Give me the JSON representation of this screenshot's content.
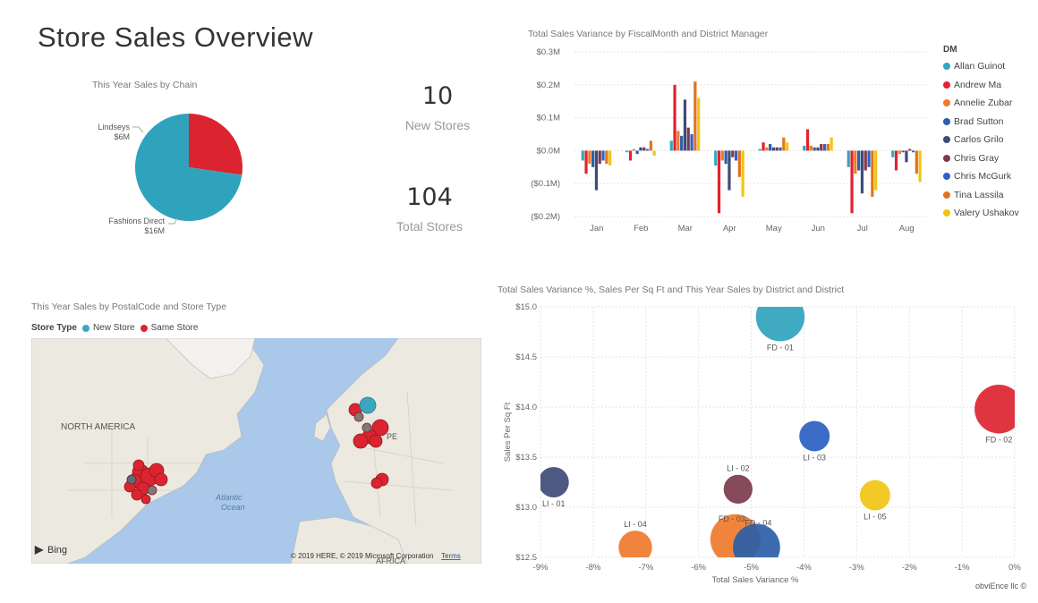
{
  "page": {
    "title": "Store Sales Overview",
    "footer": "obviEnce llc ©"
  },
  "kpis": [
    {
      "value": "10",
      "label": "New Stores"
    },
    {
      "value": "104",
      "label": "Total Stores"
    }
  ],
  "chart_data": [
    {
      "type": "pie",
      "title": "This Year Sales by Chain",
      "slices": [
        {
          "name": "Lindseys",
          "label": "$6M",
          "value": 6,
          "color": "#dc2430"
        },
        {
          "name": "Fashions Direct",
          "label": "$16M",
          "value": 16,
          "color": "#2fa3bc"
        }
      ]
    },
    {
      "type": "bar",
      "title": "Total Sales Variance by FiscalMonth and District Manager",
      "categories": [
        "Jan",
        "Feb",
        "Mar",
        "Apr",
        "May",
        "Jun",
        "Jul",
        "Aug"
      ],
      "ylim": [
        -0.2,
        0.3
      ],
      "yticks": [
        "$0.3M",
        "$0.2M",
        "$0.1M",
        "$0.0M",
        "($0.1M)",
        "($0.2M)"
      ],
      "legend_title": "DM",
      "series": [
        {
          "name": "Allan Guinot",
          "color": "#33a6be",
          "values": [
            -0.03,
            -0.005,
            0.03,
            -0.045,
            0.005,
            0.015,
            -0.05,
            -0.02
          ]
        },
        {
          "name": "Andrew Ma",
          "color": "#e3212f",
          "values": [
            -0.07,
            -0.03,
            0.2,
            -0.19,
            0.025,
            0.065,
            -0.19,
            -0.06
          ]
        },
        {
          "name": "Annelie Zubar",
          "color": "#f07a2c",
          "values": [
            -0.04,
            0.005,
            0.06,
            -0.03,
            0.01,
            0.015,
            -0.07,
            -0.01
          ]
        },
        {
          "name": "Brad Sutton",
          "color": "#2b5fa8",
          "values": [
            -0.05,
            -0.01,
            0.045,
            -0.04,
            0.02,
            0.01,
            -0.06,
            -0.005
          ]
        },
        {
          "name": "Carlos Grilo",
          "color": "#3f4b78",
          "values": [
            -0.12,
            0.01,
            0.155,
            -0.12,
            0.01,
            0.01,
            -0.13,
            -0.035
          ]
        },
        {
          "name": "Chris Gray",
          "color": "#7c3b4c",
          "values": [
            -0.04,
            0.01,
            0.07,
            -0.02,
            0.01,
            0.02,
            -0.06,
            0.005
          ]
        },
        {
          "name": "Chris McGurk",
          "color": "#3160c8",
          "values": [
            -0.03,
            0.005,
            0.05,
            -0.03,
            0.01,
            0.02,
            -0.05,
            -0.005
          ]
        },
        {
          "name": "Tina Lassila",
          "color": "#e2731f",
          "values": [
            -0.04,
            0.03,
            0.21,
            -0.08,
            0.04,
            0.02,
            -0.14,
            -0.07
          ]
        },
        {
          "name": "Valery Ushakov",
          "color": "#f2c512",
          "values": [
            -0.045,
            -0.015,
            0.16,
            -0.14,
            0.025,
            0.04,
            -0.12,
            -0.095
          ]
        }
      ]
    },
    {
      "type": "scatter",
      "title": "Total Sales Variance %, Sales Per Sq Ft and This Year Sales by District and District",
      "xlabel": "Total Sales Variance %",
      "ylabel": "Sales Per Sq Ft",
      "xlim": [
        -9,
        0
      ],
      "ylim": [
        12.5,
        15.0
      ],
      "xticks": [
        -9,
        -8,
        -7,
        -6,
        -5,
        -4,
        -3,
        -2,
        -1,
        0
      ],
      "xtick_labels": [
        "-9%",
        "-8%",
        "-7%",
        "-6%",
        "-5%",
        "-4%",
        "-3%",
        "-2%",
        "-1%",
        "0%"
      ],
      "yticks": [
        12.5,
        13.0,
        13.5,
        14.0,
        14.5,
        15.0
      ],
      "ytick_labels": [
        "$12.5",
        "$13.0",
        "$13.5",
        "$14.0",
        "$14.5",
        "$15.0"
      ],
      "points": [
        {
          "label": "FD - 01",
          "x": -4.45,
          "y": 14.9,
          "size": 1.6,
          "color": "#2fa3bc"
        },
        {
          "label": "FD - 02",
          "x": -0.3,
          "y": 13.98,
          "size": 1.6,
          "color": "#dc2430"
        },
        {
          "label": "LI - 03",
          "x": -3.8,
          "y": 13.71,
          "size": 1.0,
          "color": "#2b5fc0"
        },
        {
          "label": "LI - 01",
          "x": -8.75,
          "y": 13.25,
          "size": 1.0,
          "color": "#3f4b78"
        },
        {
          "label": "LI - 02",
          "x": -5.25,
          "y": 13.18,
          "size": 0.95,
          "color": "#7c3b4c"
        },
        {
          "label": "LI - 05",
          "x": -2.65,
          "y": 13.12,
          "size": 1.0,
          "color": "#f2c512"
        },
        {
          "label": "LI - 04",
          "x": -7.2,
          "y": 12.6,
          "size": 1.1,
          "color": "#f07a2c"
        },
        {
          "label": "FD - 03",
          "x": -5.3,
          "y": 12.68,
          "size": 1.65,
          "color": "#f07a2c"
        },
        {
          "label": "FD - 04",
          "x": -4.9,
          "y": 12.6,
          "size": 1.55,
          "color": "#2b5fa8"
        }
      ]
    },
    {
      "type": "map",
      "title": "This Year Sales by PostalCode and Store Type",
      "legend_title": "Store Type",
      "legend": [
        {
          "name": "New Store",
          "color": "#3aa7be"
        },
        {
          "name": "Same Store",
          "color": "#dc2430"
        }
      ],
      "place_labels": [
        "NORTH AMERICA",
        "Atlantic",
        "Ocean",
        "PE",
        "AFRICA"
      ],
      "attribution": "© 2019 HERE, © 2019 Microsoft Corporation",
      "terms_link": "Terms",
      "brand": "Bing"
    }
  ]
}
